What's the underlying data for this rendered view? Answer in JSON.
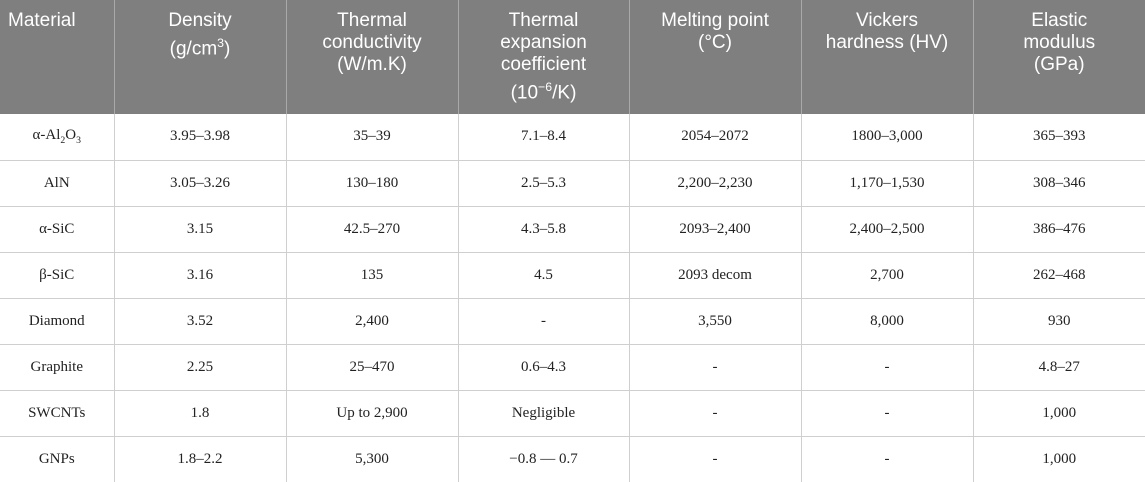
{
  "header": {
    "material": "Material",
    "density": {
      "line1": "Density",
      "line2": "(g/cm",
      "sup": "3",
      "end": ")"
    },
    "thermal_conductivity": {
      "line1": "Thermal",
      "line2": "conductivity",
      "line3": "(W/m.K)"
    },
    "thermal_expansion": {
      "line1": "Thermal",
      "line2": "expansion",
      "line3": "coefficient",
      "line4_pre": "(10",
      "sup": "−6",
      "line4_post": "/K)"
    },
    "melting_point": {
      "line1": "Melting point",
      "line2": "(°C)"
    },
    "vickers_hardness": {
      "line1": "Vickers",
      "line2": "hardness (HV)"
    },
    "elastic_modulus": {
      "line1": "Elastic",
      "line2": "modulus",
      "line3": "(GPa)"
    }
  },
  "rows": [
    {
      "material": "α-Al",
      "sub1": "2",
      "mid": "O",
      "sub2": "3",
      "density": "3.95–3.98",
      "conductivity": "35–39",
      "expansion": "7.1–8.4",
      "melting": "2054–2072",
      "hardness": "1800–3,000",
      "modulus": "365–393"
    },
    {
      "material": "AlN",
      "density": "3.05–3.26",
      "conductivity": "130–180",
      "expansion": "2.5–5.3",
      "melting": "2,200–2,230",
      "hardness": "1,170–1,530",
      "modulus": "308–346"
    },
    {
      "material": "α-SiC",
      "density": "3.15",
      "conductivity": "42.5–270",
      "expansion": "4.3–5.8",
      "melting": "2093–2,400",
      "hardness": "2,400–2,500",
      "modulus": "386–476"
    },
    {
      "material": "β-SiC",
      "density": "3.16",
      "conductivity": "135",
      "expansion": "4.5",
      "melting": "2093 decom",
      "hardness": "2,700",
      "modulus": "262–468"
    },
    {
      "material": "Diamond",
      "density": "3.52",
      "conductivity": "2,400",
      "expansion": "-",
      "melting": "3,550",
      "hardness": "8,000",
      "modulus": "930"
    },
    {
      "material": "Graphite",
      "density": "2.25",
      "conductivity": "25–470",
      "expansion": "0.6–4.3",
      "melting": "-",
      "hardness": "-",
      "modulus": "4.8–27"
    },
    {
      "material": "SWCNTs",
      "density": "1.8",
      "conductivity": "Up to 2,900",
      "expansion": "Negligible",
      "melting": "-",
      "hardness": "-",
      "modulus": "1,000"
    },
    {
      "material": "GNPs",
      "density": "1.8–2.2",
      "conductivity": "5,300",
      "expansion": "−0.8 — 0.7",
      "melting": "-",
      "hardness": "-",
      "modulus": "1,000"
    }
  ]
}
